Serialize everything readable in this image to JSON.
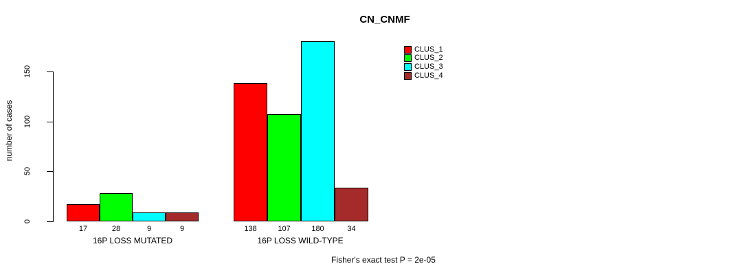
{
  "page": {
    "background": "#FFFFFF"
  },
  "chart_data": {
    "type": "bar",
    "title": "CN_CNMF",
    "ylabel": "number of cases",
    "xlabel": "",
    "categories": [
      "16P LOSS MUTATED",
      "16P LOSS WILD-TYPE"
    ],
    "series": [
      {
        "name": "CLUS_1",
        "color": "#FF0000",
        "values": [
          17,
          138
        ]
      },
      {
        "name": "CLUS_2",
        "color": "#00FF00",
        "values": [
          28,
          107
        ]
      },
      {
        "name": "CLUS_3",
        "color": "#00FFFF",
        "values": [
          9,
          180
        ]
      },
      {
        "name": "CLUS_4",
        "color": "#A52A2A",
        "values": [
          9,
          34
        ]
      }
    ],
    "yticks": [
      0,
      50,
      100,
      150
    ],
    "ylim": [
      0,
      185
    ],
    "grid": false,
    "bar_value_labels_shown": true,
    "legend_position": "top-right-inside",
    "annotation": "Fisher's exact test P = 2e-05"
  }
}
